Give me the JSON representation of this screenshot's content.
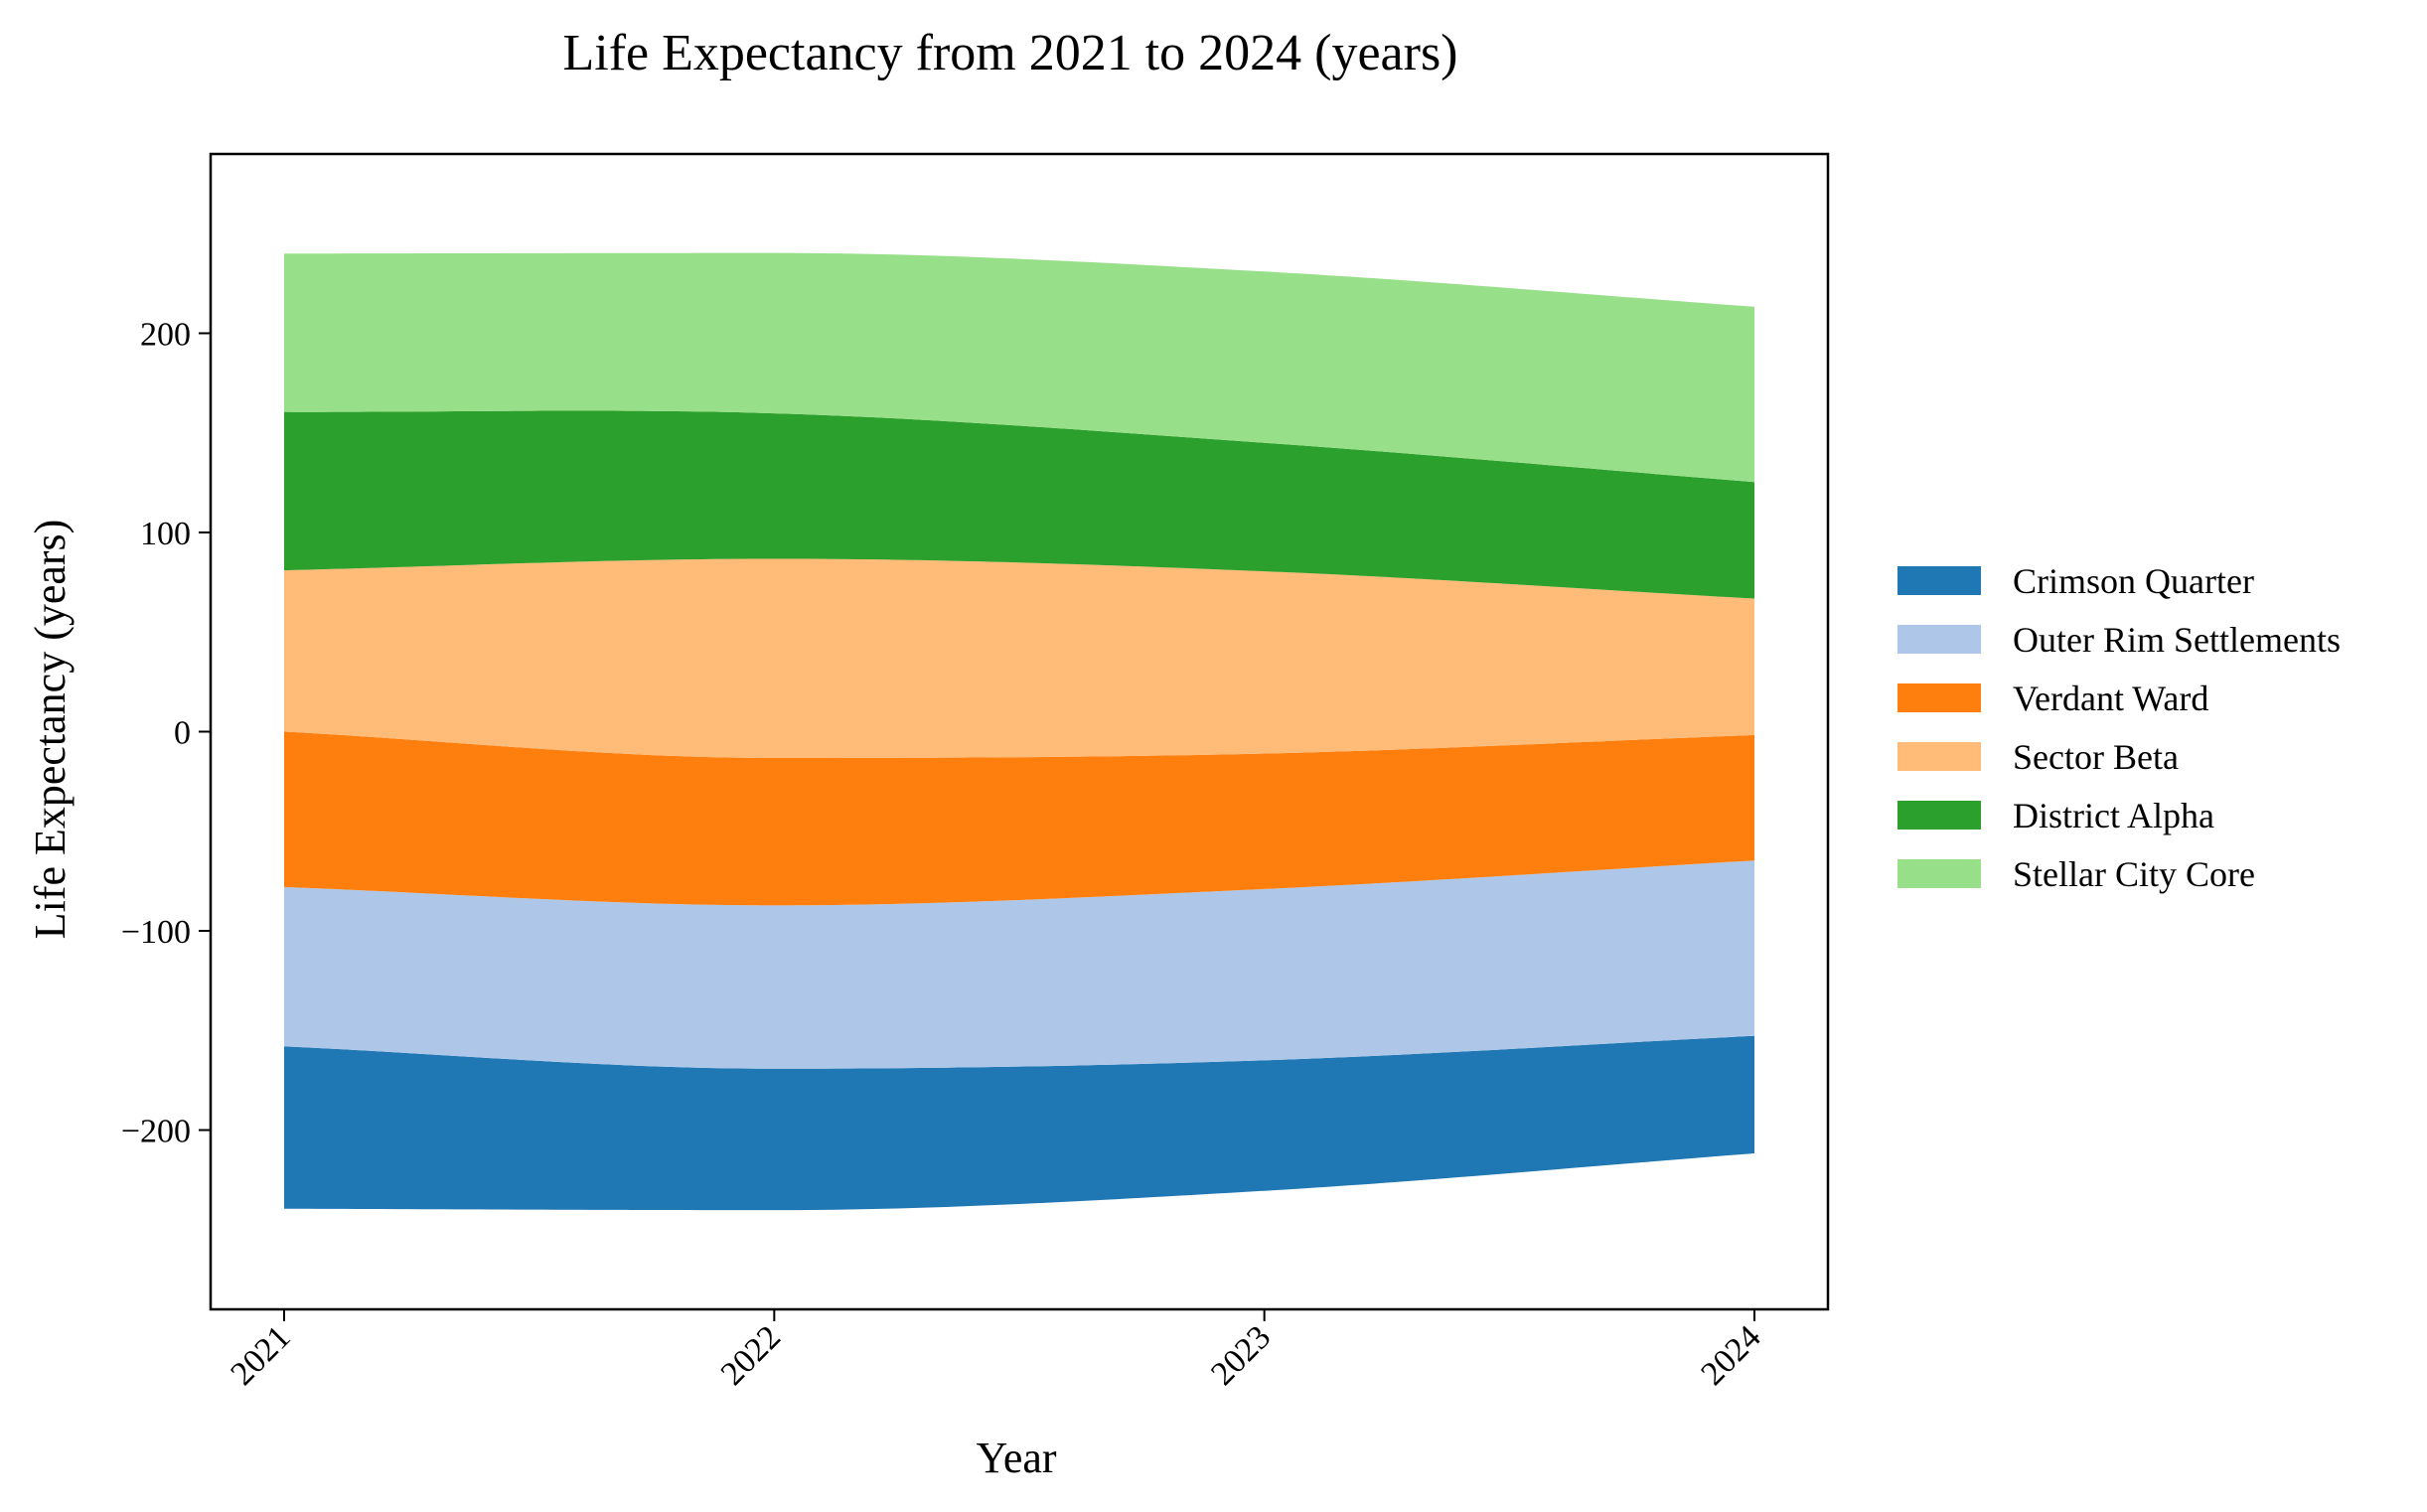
{
  "chart_data": {
    "type": "area",
    "subtype": "streamgraph",
    "title": "Life Expectancy from 2021 to 2024 (years)",
    "xlabel": "Year",
    "ylabel": "Life Expectancy (years)",
    "x": [
      2021,
      2022,
      2023,
      2024
    ],
    "x_tick_labels": [
      "2021",
      "2022",
      "2023",
      "2024"
    ],
    "yticks": [
      -200,
      -100,
      0,
      100,
      200
    ],
    "y_tick_labels": [
      "−200",
      "−100",
      "0",
      "100",
      "200"
    ],
    "ylim": [
      -290,
      290
    ],
    "baseline": [
      -239.5,
      -240.2,
      -230.5,
      -211.7
    ],
    "series": [
      {
        "name": "Crimson Quarter",
        "color": "#1f77b4",
        "values": [
          81.5,
          71.0,
          65.5,
          59.0
        ]
      },
      {
        "name": "Outer Rim Settlements",
        "color": "#aec7e8",
        "values": [
          80.0,
          82.0,
          86.0,
          88.0
        ]
      },
      {
        "name": "Verdant Ward",
        "color": "#ff7f0e",
        "values": [
          78.0,
          74.0,
          68.0,
          63.0
        ]
      },
      {
        "name": "Sector Beta",
        "color": "#ffbb78",
        "values": [
          81.0,
          100.0,
          91.5,
          68.5
        ]
      },
      {
        "name": "District Alpha",
        "color": "#2ca02c",
        "values": [
          79.5,
          73.0,
          64.5,
          58.5
        ]
      },
      {
        "name": "Stellar City Core",
        "color": "#98df8a",
        "values": [
          79.5,
          80.5,
          86.0,
          88.0
        ]
      }
    ],
    "legend_position": "right",
    "grid": false
  }
}
